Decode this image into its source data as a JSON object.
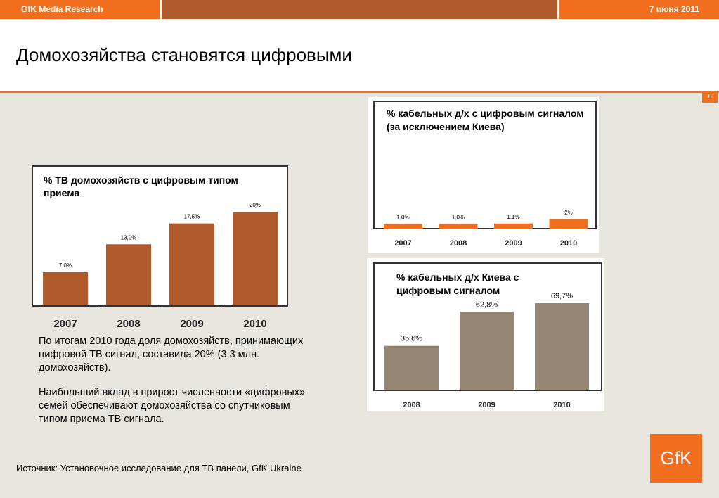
{
  "header": {
    "company": "GfK Media Research",
    "date": "7 июня 2011",
    "title": "Домохозяйства становятся цифровыми",
    "page_number": "8"
  },
  "colors": {
    "accent": "#f26f20",
    "bar_brown": "#b05a2c",
    "bar_taupe": "#948672"
  },
  "chart_data": [
    {
      "type": "bar",
      "title": "% ТВ домохозяйств с цифровым типом приема",
      "categories": [
        "2007",
        "2008",
        "2009",
        "2010"
      ],
      "values": [
        7.0,
        13.0,
        17.5,
        20
      ],
      "labels": [
        "7,0%",
        "13,0%",
        "17,5%",
        "20%"
      ],
      "ylim": [
        0,
        22
      ]
    },
    {
      "type": "bar",
      "title": "% кабельных  д/х с цифровым сигналом (за исключением Киева)",
      "categories": [
        "2007",
        "2008",
        "2009",
        "2010"
      ],
      "values": [
        1.0,
        1.0,
        1.1,
        2
      ],
      "labels": [
        "1,0%",
        "1,0%",
        "1,1%",
        "2%"
      ],
      "ylim": [
        0,
        22
      ]
    },
    {
      "type": "bar",
      "title": "% кабельных д/х Киева с цифровым сигналом",
      "categories": [
        "2008",
        "2009",
        "2010"
      ],
      "values": [
        35.6,
        62.8,
        69.7
      ],
      "labels": [
        "35,6%",
        "62,8%",
        "69,7%"
      ],
      "ylim": [
        0,
        77
      ]
    }
  ],
  "text": {
    "para1": "По итогам 2010 года доля домохозяйств, принимающих цифровой ТВ сигнал, составила 20% (3,3 млн. домохозяйств).",
    "para2": "Наибольший вклад в прирост численности «цифровых» семей обеспечивают домохозяйства со спутниковым типом приема ТВ сигнала."
  },
  "footer": {
    "source": "Источник: Установочное исследование для ТВ панели, GfK Ukraine",
    "logo": "GfK"
  }
}
